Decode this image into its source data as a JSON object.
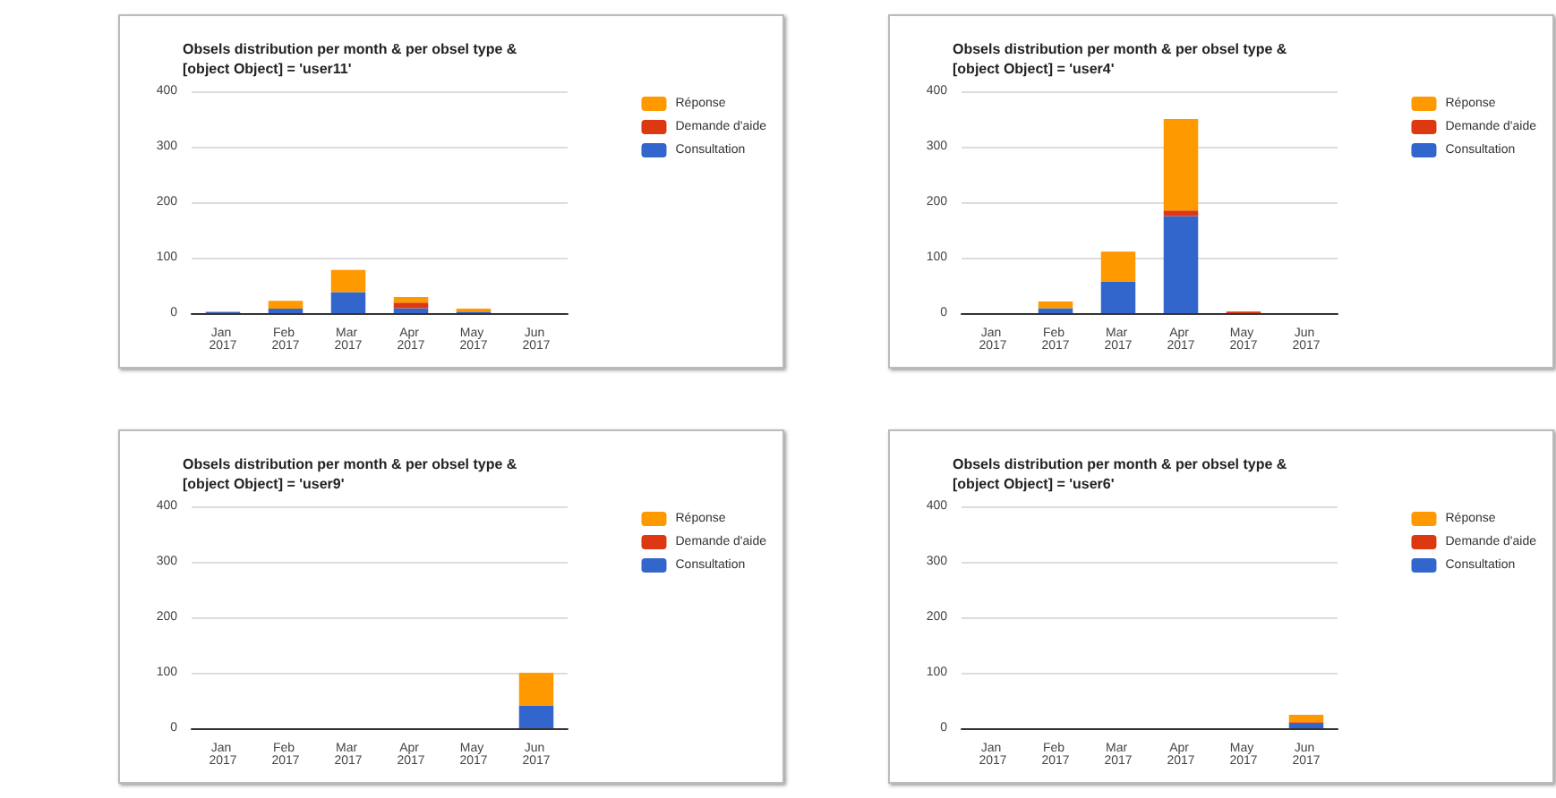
{
  "chart_data": [
    {
      "type": "bar",
      "title": "Obsels distribution per month & per obsel type & [object Object] = 'user11'",
      "categories": [
        "Jan 2017",
        "Feb 2017",
        "Mar 2017",
        "Apr 2017",
        "May 2017",
        "Jun 2017"
      ],
      "stacked": true,
      "ylim": [
        0,
        400
      ],
      "yticks": [
        0,
        100,
        200,
        300,
        400
      ],
      "grid": "y",
      "legend": "top right",
      "series": [
        {
          "name": "Consultation",
          "color": "#3366cc",
          "values": [
            2,
            8,
            38,
            9,
            2,
            0
          ]
        },
        {
          "name": "Demande d'aide",
          "color": "#dc3912",
          "values": [
            0,
            0,
            0,
            10,
            1,
            0
          ]
        },
        {
          "name": "Réponse",
          "color": "#ff9900",
          "values": [
            1,
            14,
            40,
            10,
            5,
            0
          ]
        }
      ]
    },
    {
      "type": "bar",
      "title": "Obsels distribution per month & per obsel type & [object Object] = 'user4'",
      "categories": [
        "Jan 2017",
        "Feb 2017",
        "Mar 2017",
        "Apr 2017",
        "May 2017",
        "Jun 2017"
      ],
      "stacked": true,
      "ylim": [
        0,
        400
      ],
      "yticks": [
        0,
        100,
        200,
        300,
        400
      ],
      "grid": "y",
      "legend": "top right",
      "series": [
        {
          "name": "Consultation",
          "color": "#3366cc",
          "values": [
            0,
            9,
            57,
            175,
            0,
            0
          ]
        },
        {
          "name": "Demande d'aide",
          "color": "#dc3912",
          "values": [
            0,
            0,
            0,
            10,
            3,
            0
          ]
        },
        {
          "name": "Réponse",
          "color": "#ff9900",
          "values": [
            0,
            12,
            54,
            165,
            0,
            0
          ]
        }
      ]
    },
    {
      "type": "bar",
      "title": "Obsels distribution per month & per obsel type & [object Object] = 'user9'",
      "categories": [
        "Jan 2017",
        "Feb 2017",
        "Mar 2017",
        "Apr 2017",
        "May 2017",
        "Jun 2017"
      ],
      "stacked": true,
      "ylim": [
        0,
        400
      ],
      "yticks": [
        0,
        100,
        200,
        300,
        400
      ],
      "grid": "y",
      "legend": "top right",
      "series": [
        {
          "name": "Consultation",
          "color": "#3366cc",
          "values": [
            0,
            0,
            0,
            0,
            0,
            41
          ]
        },
        {
          "name": "Demande d'aide",
          "color": "#dc3912",
          "values": [
            0,
            0,
            0,
            0,
            0,
            0
          ]
        },
        {
          "name": "Réponse",
          "color": "#ff9900",
          "values": [
            0,
            0,
            0,
            0,
            0,
            59
          ]
        }
      ]
    },
    {
      "type": "bar",
      "title": "Obsels distribution per month & per obsel type & [object Object] = 'user6'",
      "categories": [
        "Jan 2017",
        "Feb 2017",
        "Mar 2017",
        "Apr 2017",
        "May 2017",
        "Jun 2017"
      ],
      "stacked": true,
      "ylim": [
        0,
        400
      ],
      "yticks": [
        0,
        100,
        200,
        300,
        400
      ],
      "grid": "y",
      "legend": "top right",
      "series": [
        {
          "name": "Consultation",
          "color": "#3366cc",
          "values": [
            0,
            0,
            0,
            0,
            0,
            8
          ]
        },
        {
          "name": "Demande d'aide",
          "color": "#dc3912",
          "values": [
            0,
            0,
            0,
            0,
            0,
            3
          ]
        },
        {
          "name": "Réponse",
          "color": "#ff9900",
          "values": [
            0,
            0,
            0,
            0,
            0,
            13
          ]
        }
      ]
    }
  ]
}
